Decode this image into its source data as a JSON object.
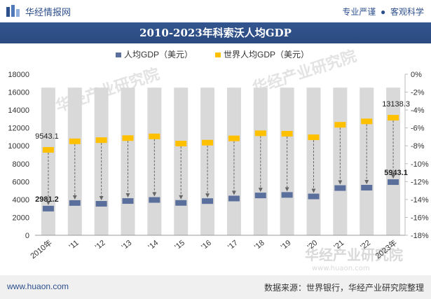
{
  "header": {
    "brand": "华经情报网",
    "slogan_left": "专业严谨",
    "slogan_right": "客观科学"
  },
  "footer": {
    "url": "www.huaon.com",
    "source": "数据来源：世界银行，华经产业研究院整理"
  },
  "watermark": {
    "text": "华经产业研究院",
    "url": "www.huaon.com"
  },
  "colors": {
    "title_band": "#2d4f8c",
    "series_gdp": "#5a6f9b",
    "series_world": "#ffc000",
    "column_band": "#d9d9d9"
  },
  "chart_data": {
    "type": "dot-plot",
    "title": "2010-2023年科索沃人均GDP",
    "categories": [
      "2010年",
      "'11",
      "'12",
      "'13",
      "'14",
      "'15",
      "'16",
      "'17",
      "'18",
      "'19",
      "'20",
      "'21",
      "'22",
      "2023年"
    ],
    "series": [
      {
        "name": "人均GDP（美元）",
        "values": [
          2981.2,
          3610,
          3520,
          3830,
          3950,
          3620,
          3820,
          4110,
          4450,
          4510,
          4340,
          5280,
          5320,
          5943.1
        ]
      },
      {
        "name": "世界人均GDP（美元）",
        "values": [
          9543.1,
          10500,
          10630,
          10860,
          11050,
          10250,
          10350,
          10830,
          11400,
          11350,
          10950,
          12350,
          12730,
          13138.3
        ]
      }
    ],
    "data_labels": [
      {
        "series": 0,
        "index": 0,
        "text": "2981.2"
      },
      {
        "series": 0,
        "index": 13,
        "text": "5943.1"
      },
      {
        "series": 1,
        "index": 0,
        "text": "9543.1"
      },
      {
        "series": 1,
        "index": 13,
        "text": "13138.3"
      }
    ],
    "y_left": {
      "min": 0,
      "max": 18000,
      "step": 2000,
      "ticks": [
        "0",
        "2000",
        "4000",
        "6000",
        "8000",
        "10000",
        "12000",
        "14000",
        "16000",
        "18000"
      ]
    },
    "y_right": {
      "ticks": [
        "0%",
        "-2%",
        "-4%",
        "-6%",
        "-8%",
        "-10%",
        "-12%",
        "-14%",
        "-16%",
        "-18%"
      ]
    },
    "legend_position": "top-center",
    "grid": false
  }
}
